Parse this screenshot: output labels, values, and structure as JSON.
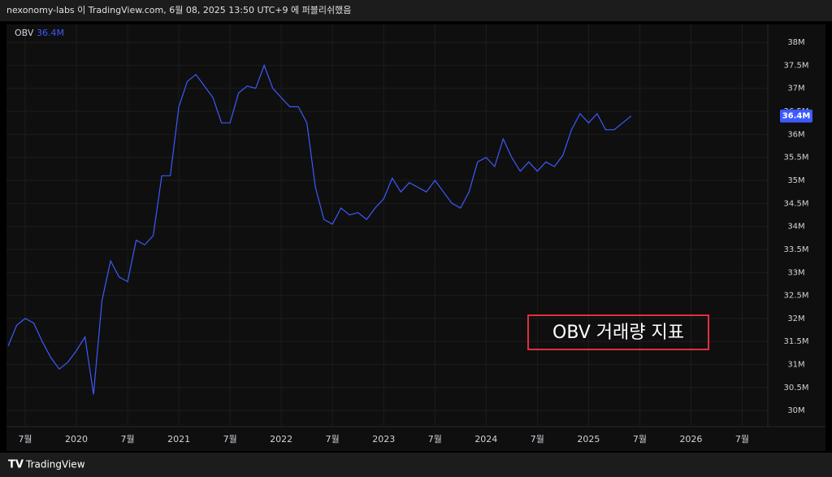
{
  "publisher_line": "nexonomy-labs 이 TradingView.com, 6월 08, 2025 13:50 UTC+9 에 퍼블리쉬했음",
  "brand": "TradingView",
  "chart_data": {
    "type": "line",
    "annotation": "OBV 거래량 지표",
    "x": [
      "2019-05",
      "2019-06",
      "2019-07",
      "2019-08",
      "2019-09",
      "2019-10",
      "2019-11",
      "2019-12",
      "2020-01",
      "2020-02",
      "2020-03",
      "2020-04",
      "2020-05",
      "2020-06",
      "2020-07",
      "2020-08",
      "2020-09",
      "2020-10",
      "2020-11",
      "2020-12",
      "2021-01",
      "2021-02",
      "2021-03",
      "2021-04",
      "2021-05",
      "2021-06",
      "2021-07",
      "2021-08",
      "2021-09",
      "2021-10",
      "2021-11",
      "2021-12",
      "2022-01",
      "2022-02",
      "2022-03",
      "2022-04",
      "2022-05",
      "2022-06",
      "2022-07",
      "2022-08",
      "2022-09",
      "2022-10",
      "2022-11",
      "2022-12",
      "2023-01",
      "2023-02",
      "2023-03",
      "2023-04",
      "2023-05",
      "2023-06",
      "2023-07",
      "2023-08",
      "2023-09",
      "2023-10",
      "2023-11",
      "2023-12",
      "2024-01",
      "2024-02",
      "2024-03",
      "2024-04",
      "2024-05",
      "2024-06",
      "2024-07",
      "2024-08",
      "2024-09",
      "2024-10",
      "2024-11",
      "2024-12",
      "2025-01",
      "2025-02",
      "2025-03",
      "2025-04",
      "2025-05",
      "2025-06"
    ],
    "series": [
      {
        "name": "OBV",
        "color": "#3d5afe",
        "values": [
          31400000,
          31850000,
          32000000,
          31900000,
          31500000,
          31150000,
          30900000,
          31050000,
          31300000,
          31600000,
          30350000,
          32400000,
          33250000,
          32900000,
          32800000,
          33700000,
          33600000,
          33800000,
          35100000,
          35100000,
          36600000,
          37150000,
          37300000,
          37050000,
          36800000,
          36250000,
          36250000,
          36900000,
          37050000,
          37000000,
          37500000,
          37000000,
          36800000,
          36600000,
          36600000,
          36250000,
          34850000,
          34150000,
          34050000,
          34400000,
          34250000,
          34300000,
          34150000,
          34400000,
          34600000,
          35050000,
          34750000,
          34950000,
          34850000,
          34750000,
          35000000,
          34750000,
          34500000,
          34400000,
          34750000,
          35400000,
          35500000,
          35300000,
          35900000,
          35500000,
          35200000,
          35400000,
          35200000,
          35400000,
          35300000,
          35550000,
          36100000,
          36450000,
          36250000,
          36450000,
          36100000,
          36100000,
          36250000,
          36400000
        ]
      }
    ],
    "legend_value": {
      "value": 36400000,
      "label": "36.4M"
    },
    "xlim": [
      "2019-05",
      "2026-10"
    ],
    "xticks": [
      {
        "value": "2019-07",
        "label": "7월"
      },
      {
        "value": "2020-01",
        "label": "2020"
      },
      {
        "value": "2020-07",
        "label": "7월"
      },
      {
        "value": "2021-01",
        "label": "2021"
      },
      {
        "value": "2021-07",
        "label": "7월"
      },
      {
        "value": "2022-01",
        "label": "2022"
      },
      {
        "value": "2022-07",
        "label": "7월"
      },
      {
        "value": "2023-01",
        "label": "2023"
      },
      {
        "value": "2023-07",
        "label": "7월"
      },
      {
        "value": "2024-01",
        "label": "2024"
      },
      {
        "value": "2024-07",
        "label": "7월"
      },
      {
        "value": "2025-01",
        "label": "2025"
      },
      {
        "value": "2025-07",
        "label": "7월"
      },
      {
        "value": "2026-01",
        "label": "2026"
      },
      {
        "value": "2026-07",
        "label": "7월"
      }
    ],
    "ylim": [
      29650000,
      38390000
    ],
    "yticks": [
      {
        "value": 30000000,
        "label": "30M"
      },
      {
        "value": 30500000,
        "label": "30.5M"
      },
      {
        "value": 31000000,
        "label": "31M"
      },
      {
        "value": 31500000,
        "label": "31.5M"
      },
      {
        "value": 32000000,
        "label": "32M"
      },
      {
        "value": 32500000,
        "label": "32.5M"
      },
      {
        "value": 33000000,
        "label": "33M"
      },
      {
        "value": 33500000,
        "label": "33.5M"
      },
      {
        "value": 34000000,
        "label": "34M"
      },
      {
        "value": 34500000,
        "label": "34.5M"
      },
      {
        "value": 35000000,
        "label": "35M"
      },
      {
        "value": 35500000,
        "label": "35.5M"
      },
      {
        "value": 36000000,
        "label": "36M"
      },
      {
        "value": 36500000,
        "label": "36.5M"
      },
      {
        "value": 37000000,
        "label": "37M"
      },
      {
        "value": 37500000,
        "label": "37.5M"
      },
      {
        "value": 38000000,
        "label": "38M"
      }
    ],
    "grid": true
  }
}
